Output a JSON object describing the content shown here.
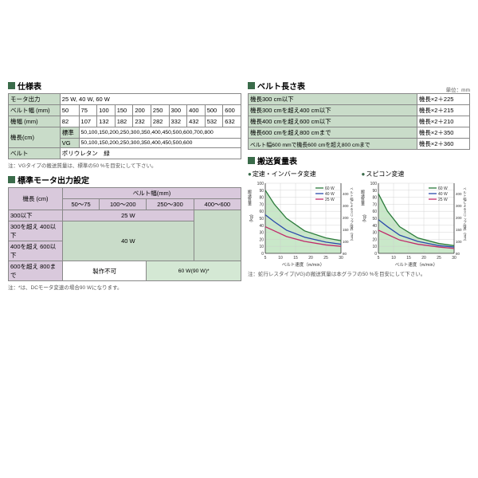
{
  "spec": {
    "title": "仕様表",
    "rows": [
      {
        "label": "モータ出力",
        "value": "25 W, 40 W, 60 W"
      },
      {
        "label": "ベルト幅 (mm)",
        "cells": [
          "50",
          "75",
          "100",
          "150",
          "200",
          "250",
          "300",
          "400",
          "500",
          "600"
        ]
      },
      {
        "label": "機幅 (mm)",
        "cells": [
          "82",
          "107",
          "132",
          "182",
          "232",
          "282",
          "332",
          "432",
          "532",
          "632"
        ]
      },
      {
        "label_rowspan": "機長(cm)",
        "sub1": "標準",
        "val1": "50,100,150,200,250,300,350,400,450,500,600,700,800",
        "sub2": "VG",
        "val2": "50,100,150,200,250,300,350,400,450,500,600"
      },
      {
        "label": "ベルト",
        "value": "ポリウレタン　緑"
      }
    ],
    "note": "注：VGタイプの搬送質量は、標準の50 %を目安にして下さい。"
  },
  "beltlen": {
    "title": "ベルト長さ表",
    "unit": "単位：mm",
    "rows": [
      {
        "cond": "機長300 cm以下",
        "calc": "機長×2＋225"
      },
      {
        "cond": "機長300 cmを超え400 cm以下",
        "calc": "機長×2＋215"
      },
      {
        "cond": "機長400 cmを超え600 cm以下",
        "calc": "機長×2＋210"
      },
      {
        "cond": "機長600 cmを超え800 cmまで",
        "calc": "機長×2＋350"
      },
      {
        "cond": "ベルト幅600 mmで機長600 cmを超え800 cmまで",
        "calc": "機長×2＋360"
      }
    ]
  },
  "motor": {
    "title": "標準モータ出力設定",
    "row_header": "機長 (cm)",
    "col_header": "ベルト幅(mm)",
    "col_ranges": [
      "50〜75",
      "100〜200",
      "250〜300",
      "400〜600"
    ],
    "row_ranges": [
      "300以下",
      "300を超え 400以下",
      "400を超え 600以下",
      "600を超え 800まで"
    ],
    "cells": {
      "w25": "25 W",
      "w40": "40 W",
      "w60": "60 W(90 W)*",
      "nf": "製作不可"
    },
    "note": "注：*は、DCモータ変速の場合90 Wになります。"
  },
  "mass": {
    "title": "搬送質量表",
    "chart1_title": "定速・インバータ変速",
    "chart2_title": "スピコン変速",
    "xlabel": "ベルト速度（m/min）",
    "ylabel": "搬送質量（kg）",
    "legend": [
      "60 W",
      "40 W",
      "25 W"
    ],
    "legend_colors": [
      "#2a7a3a",
      "#2a4aaa",
      "#c02a6a"
    ],
    "xticks": [
      5,
      10,
      15,
      20,
      25,
      30
    ],
    "yticks": [
      0,
      10,
      20,
      30,
      40,
      50,
      60,
      70,
      80,
      90,
      100
    ],
    "right_ticks": [
      80,
      100,
      150,
      200,
      300,
      400
    ],
    "right_label": "ベルト幅によるスリップ限界（mm）",
    "mass_note": "注：蛇行レスタイプ(VG)の搬送質量は本グラフの50 %を目安にして下さい。",
    "fill_color": "#c9e8c9",
    "grid_color": "#ccc",
    "axis_color": "#333"
  }
}
